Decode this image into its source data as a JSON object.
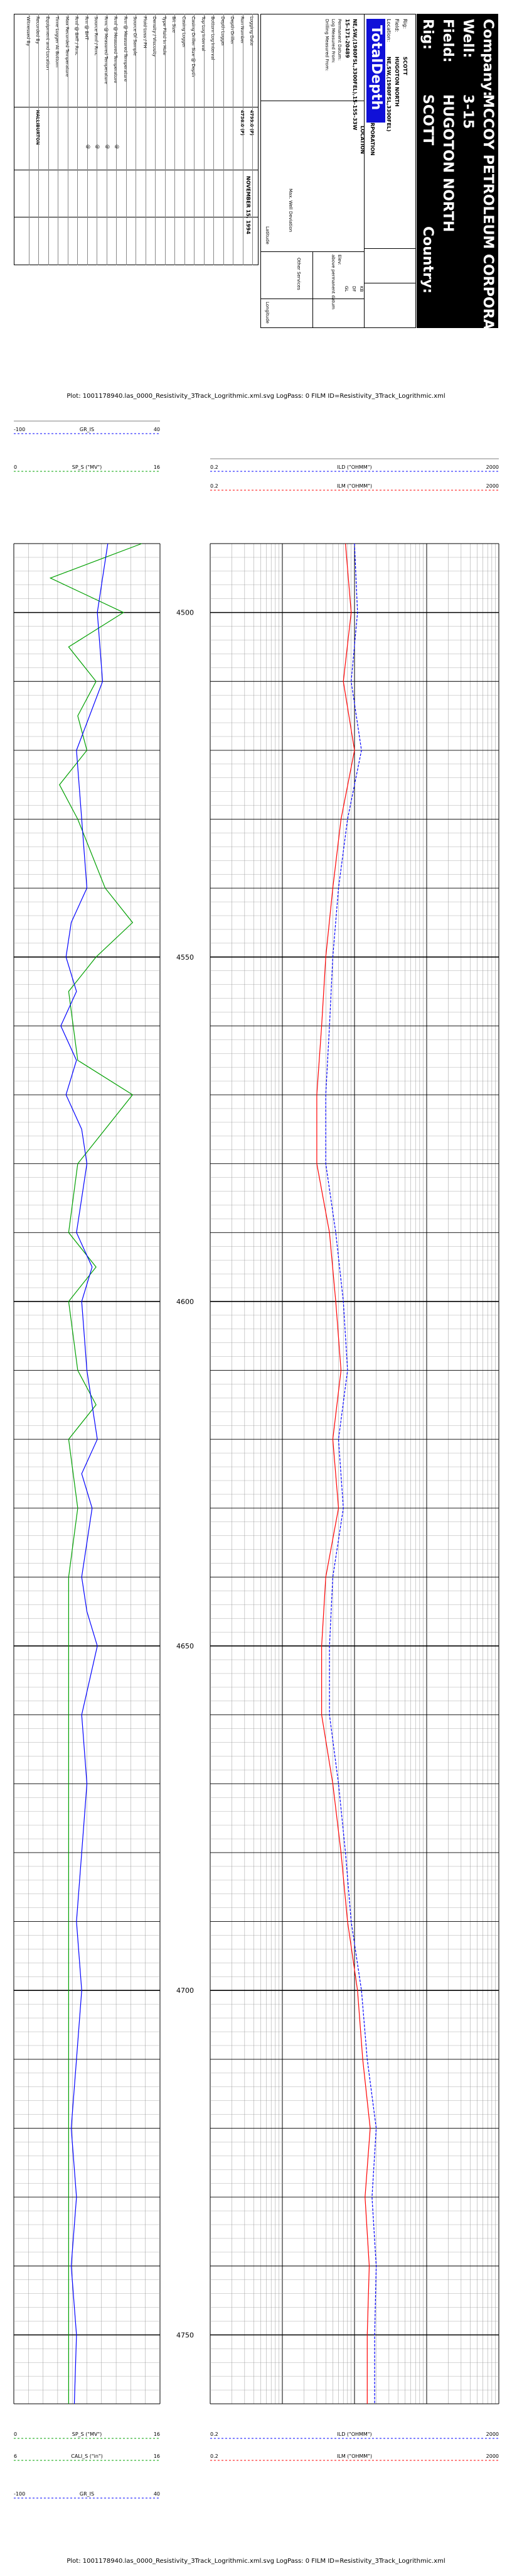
{
  "header": {
    "company_label": "Company:",
    "company_value": "MCCOY PETROLEUM CORPORATION",
    "well_label": "Well:",
    "well_value": "3-15",
    "field_label": "Field:",
    "field_value": "HUGOTON NORTH",
    "rig_label": "Rig:",
    "rig_value": "SCOTT",
    "country_label": "Country:",
    "info_rows": [
      {
        "label": "Rig:",
        "value": "SCOTT"
      },
      {
        "label": "Field:",
        "value": "HUGOTON NORTH"
      },
      {
        "label": "Location:",
        "value": "NE,SW,(1980FSL,3300FEL)"
      },
      {
        "label": "Well:",
        "value": "3-15"
      },
      {
        "label": "Company:",
        "value": "MCCOY PETROLEUM CORPORATION"
      }
    ],
    "logo_text": "TotalDepth",
    "location_title": "LOCATION",
    "location_value": "NE,SW,(1980FSL,3300FEL),15-15S-33W",
    "api_value": "15-171-20489",
    "elev_label": "Elev:",
    "elev_value": "KB",
    "elev_rows": [
      "DF",
      "GL"
    ],
    "permanent_datum": "Permanent Datum:",
    "log_measured_from": "Log Measured From:",
    "drilling_measured_from": "Drilling Measured From:",
    "above_datum": "above permanent datum",
    "max_well_deviation": "Max. Well Deviation",
    "latitude": "Latitude",
    "longitude": "Longitude",
    "other_services": "Other Services",
    "date_label": "Date",
    "date_value": "NOVEMBER 15, 1994",
    "left_rows": [
      "Logging Date",
      "Run Number",
      "Depth Driller",
      "Depth Logger",
      "Bottom Log Interval",
      "Top Log Interval",
      "Casing Driller Size @ Depth",
      "Casing Logger",
      "Bit Size",
      "Type Fluid In Hole",
      "Density / Viscosity",
      "Fluid Loss / PH",
      "Source Of Sample",
      "Rm @ Measured Temperature",
      "Rmf @ Measured Temperature",
      "Rmc @ Measured Temperature",
      "Source Rmf / Rmc",
      "Rm @ BHT",
      "Rmf @ BHT / Rmc",
      "Max Recorded Temperature",
      "Time Logger At Bottom",
      "Equipment and Location",
      "Recorded By",
      "Witnessed By"
    ],
    "left_values": [
      "4799.0 (F)",
      "4736.0 (F)",
      "",
      "",
      "",
      "",
      "",
      "",
      "",
      "",
      "",
      "",
      "",
      "",
      "",
      "",
      "",
      "",
      "",
      "",
      "",
      "",
      "HALLIBURTON",
      ""
    ],
    "left_marks": [
      "@",
      "@",
      "@",
      "@"
    ]
  },
  "plot_caption": "Plot: 1001178940.las_0000_Resistivity_3Track_Logrithmic.xml.svg LogPass: 0 FILM ID=Resistivity_3Track_Logrithmic.xml",
  "scales": {
    "gr": {
      "name": "GR_IS",
      "min": "-100",
      "max": "40",
      "color": "#0000ff"
    },
    "cal": {
      "name": "CALI_S (\"in\")",
      "min": "6",
      "max": "16",
      "color": "#00a000"
    },
    "sp": {
      "name": "SP_S (\"MV\")",
      "min": "0",
      "max": "16",
      "color": "#00a000"
    },
    "ild": {
      "name": "ILD (\"OHMM\")",
      "min": "0.2",
      "max": "2000",
      "color": "#0000ff"
    },
    "ilm": {
      "name": "ILM (\"OHMM\")",
      "min": "0.2",
      "max": "2000",
      "color": "#ff0000"
    },
    "cal_bottom": {
      "name": "CALI_S (\"in\")",
      "min": "6",
      "max": "16"
    },
    "sp_bottom": {
      "name": "SP_S (\"MV\")",
      "min": "0",
      "max": "16"
    },
    "gr_bottom": {
      "name": "GR_IS",
      "min": "-100",
      "max": "40"
    }
  },
  "colors": {
    "gr": "#0000ff",
    "sp": "#00a000",
    "ild": "#0000ff",
    "ilm": "#ff0000",
    "grid_major": "#000000",
    "grid_minor": "#999999"
  },
  "chart_data": {
    "type": "line",
    "depth_range": [
      4490,
      4760
    ],
    "depth_labels": [
      4500,
      4550,
      4600,
      4650,
      4700,
      4750
    ],
    "tracks": [
      {
        "track": 1,
        "series": [
          {
            "name": "GR_IS",
            "xlim": [
              -100,
              40
            ],
            "points": [
              [
                4490,
                -10
              ],
              [
                4500,
                -20
              ],
              [
                4510,
                -15
              ],
              [
                4520,
                -40
              ],
              [
                4530,
                -35
              ],
              [
                4540,
                -30
              ],
              [
                4545,
                -45
              ],
              [
                4550,
                -50
              ],
              [
                4555,
                -40
              ],
              [
                4560,
                -55
              ],
              [
                4565,
                -40
              ],
              [
                4570,
                -50
              ],
              [
                4575,
                -35
              ],
              [
                4580,
                -30
              ],
              [
                4590,
                -40
              ],
              [
                4595,
                -25
              ],
              [
                4600,
                -35
              ],
              [
                4610,
                -30
              ],
              [
                4620,
                -20
              ],
              [
                4625,
                -35
              ],
              [
                4630,
                -25
              ],
              [
                4640,
                -35
              ],
              [
                4645,
                -30
              ],
              [
                4650,
                -20
              ],
              [
                4660,
                -35
              ],
              [
                4670,
                -30
              ],
              [
                4680,
                -35
              ],
              [
                4690,
                -40
              ],
              [
                4700,
                -35
              ],
              [
                4710,
                -40
              ],
              [
                4720,
                -45
              ],
              [
                4730,
                -40
              ],
              [
                4740,
                -45
              ],
              [
                4750,
                -40
              ],
              [
                4760,
                -42
              ]
            ]
          },
          {
            "name": "SP_S",
            "xlim": [
              0,
              16
            ],
            "points": [
              [
                4490,
                14
              ],
              [
                4495,
                4
              ],
              [
                4500,
                12
              ],
              [
                4505,
                6
              ],
              [
                4510,
                9
              ],
              [
                4515,
                7
              ],
              [
                4520,
                8
              ],
              [
                4525,
                5
              ],
              [
                4530,
                7
              ],
              [
                4540,
                10
              ],
              [
                4545,
                13
              ],
              [
                4550,
                9
              ],
              [
                4555,
                6
              ],
              [
                4565,
                7
              ],
              [
                4570,
                13
              ],
              [
                4575,
                10
              ],
              [
                4580,
                7
              ],
              [
                4590,
                6
              ],
              [
                4595,
                9
              ],
              [
                4600,
                6
              ],
              [
                4610,
                7
              ],
              [
                4615,
                9
              ],
              [
                4620,
                6
              ],
              [
                4630,
                7
              ],
              [
                4640,
                6
              ],
              [
                4650,
                6
              ],
              [
                4660,
                6
              ],
              [
                4680,
                6
              ],
              [
                4700,
                6
              ],
              [
                4720,
                6
              ],
              [
                4740,
                6
              ],
              [
                4760,
                6
              ]
            ]
          }
        ]
      },
      {
        "track": 2,
        "series": [
          {
            "name": "ILD",
            "xlim": [
              0.2,
              2000
            ],
            "log": true,
            "points": [
              [
                4490,
                20
              ],
              [
                4500,
                22
              ],
              [
                4510,
                18
              ],
              [
                4520,
                25
              ],
              [
                4530,
                16
              ],
              [
                4540,
                12
              ],
              [
                4550,
                10
              ],
              [
                4560,
                9
              ],
              [
                4570,
                8
              ],
              [
                4580,
                8
              ],
              [
                4590,
                11
              ],
              [
                4600,
                14
              ],
              [
                4610,
                16
              ],
              [
                4620,
                12
              ],
              [
                4630,
                14
              ],
              [
                4640,
                10
              ],
              [
                4650,
                9
              ],
              [
                4660,
                9
              ],
              [
                4670,
                12
              ],
              [
                4680,
                15
              ],
              [
                4690,
                18
              ],
              [
                4700,
                25
              ],
              [
                4710,
                30
              ],
              [
                4720,
                40
              ],
              [
                4730,
                35
              ],
              [
                4740,
                40
              ],
              [
                4750,
                38
              ],
              [
                4760,
                38
              ]
            ]
          },
          {
            "name": "ILM",
            "xlim": [
              0.2,
              2000
            ],
            "log": true,
            "points": [
              [
                4490,
                15
              ],
              [
                4500,
                18
              ],
              [
                4510,
                14
              ],
              [
                4520,
                20
              ],
              [
                4530,
                13
              ],
              [
                4540,
                10
              ],
              [
                4550,
                8
              ],
              [
                4560,
                7
              ],
              [
                4570,
                6
              ],
              [
                4580,
                6
              ],
              [
                4590,
                9
              ],
              [
                4600,
                11
              ],
              [
                4610,
                13
              ],
              [
                4620,
                10
              ],
              [
                4630,
                12
              ],
              [
                4640,
                8
              ],
              [
                4650,
                7
              ],
              [
                4660,
                7
              ],
              [
                4670,
                10
              ],
              [
                4680,
                13
              ],
              [
                4690,
                16
              ],
              [
                4700,
                22
              ],
              [
                4710,
                26
              ],
              [
                4720,
                33
              ],
              [
                4730,
                28
              ],
              [
                4740,
                32
              ],
              [
                4750,
                30
              ],
              [
                4760,
                30
              ]
            ]
          }
        ]
      }
    ]
  }
}
